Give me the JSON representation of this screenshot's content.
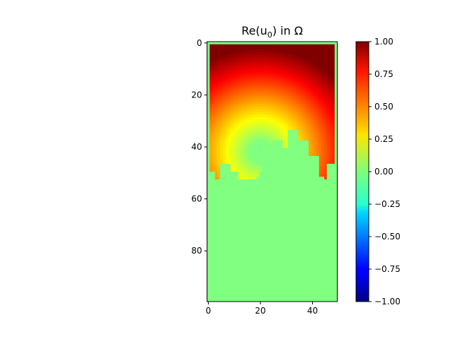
{
  "chart_data": {
    "type": "heatmap",
    "title": "Re(u",
    "title_sub": "0",
    "title_rest": ") in Ω",
    "xlabel": "",
    "ylabel": "",
    "grid": false,
    "colormap": "jet",
    "x_ticks": [
      {
        "value": 0,
        "label": "0"
      },
      {
        "value": 20,
        "label": "20"
      },
      {
        "value": 40,
        "label": "40"
      }
    ],
    "y_ticks": [
      {
        "value": 0,
        "label": "0"
      },
      {
        "value": 20,
        "label": "20"
      },
      {
        "value": 40,
        "label": "40"
      },
      {
        "value": 60,
        "label": "60"
      },
      {
        "value": 80,
        "label": "80"
      }
    ],
    "xlim": [
      -0.5,
      49.5
    ],
    "ylim": [
      99.5,
      -0.5
    ],
    "grid_shape": [
      100,
      50
    ],
    "colorbar": {
      "vmin": -1.0,
      "vmax": 1.0,
      "ticks": [
        {
          "value": 1.0,
          "label": "1.00"
        },
        {
          "value": 0.75,
          "label": "0.75"
        },
        {
          "value": 0.5,
          "label": "0.50"
        },
        {
          "value": 0.25,
          "label": "0.25"
        },
        {
          "value": 0.0,
          "label": "0.00"
        },
        {
          "value": -0.25,
          "label": "−0.25"
        },
        {
          "value": -0.5,
          "label": "−0.50"
        },
        {
          "value": -0.75,
          "label": "−0.75"
        },
        {
          "value": -1.0,
          "label": "−1.00"
        }
      ]
    },
    "field": {
      "background_value": 0.0,
      "source_center": [
        20,
        42
      ],
      "max_value": 1.0,
      "border_value": 0.0,
      "domain_left_col": 1,
      "domain_right_col": 48,
      "domain_top_row": 1,
      "boundary_rows_by_column": [
        50,
        50,
        50,
        53,
        53,
        47,
        47,
        47,
        47,
        50,
        50,
        50,
        53,
        53,
        53,
        53,
        53,
        53,
        53,
        52,
        50,
        45,
        45,
        42,
        42,
        38,
        38,
        38,
        38,
        41,
        41,
        34,
        34,
        34,
        34,
        38,
        38,
        38,
        38,
        44,
        44,
        44,
        44,
        52,
        52,
        53,
        47,
        47,
        47,
        50
      ]
    }
  }
}
